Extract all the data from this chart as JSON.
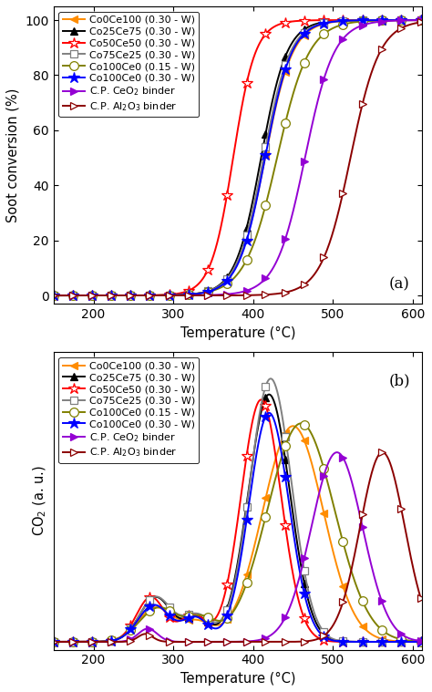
{
  "series_labels": [
    "Co0Ce100 (0.30 - W)",
    "Co25Ce75 (0.30 - W)",
    "Co50Ce50 (0.30 - W)",
    "Co75Ce25 (0.30 - W)",
    "Co100Ce0 (0.15 - W)",
    "Co100Ce0 (0.30 - W)",
    "C.P. CeO$_2$ binder",
    "C.P. Al$_2$O$_3$ binder"
  ],
  "colors": [
    "#FF8C00",
    "#000000",
    "#FF0000",
    "#808080",
    "#808000",
    "#0000FF",
    "#9400D3",
    "#8B0000"
  ],
  "markers": [
    "<",
    "^",
    "*",
    "s",
    "o",
    "*",
    ">",
    ">"
  ],
  "marker_filled": [
    true,
    true,
    false,
    false,
    false,
    true,
    true,
    false
  ],
  "marker_sizes": [
    6,
    6,
    9,
    6,
    7,
    9,
    6,
    6
  ],
  "temp_range": [
    150,
    610
  ],
  "panel_a_label": "(a)",
  "panel_b_label": "(b)",
  "xlabel": "Temperature (°C)",
  "ylabel_a": "Soot conversion (%)",
  "ylabel_b": "CO$_2$ (a. u.)",
  "xticks": [
    200,
    300,
    400,
    500,
    600
  ],
  "yticks_a": [
    0,
    20,
    40,
    60,
    80,
    100
  ],
  "ylim_a": [
    -3,
    105
  ],
  "ylim_b": [
    -0.03,
    1.1
  ],
  "sigmoid_params": [
    [
      415,
      0.058
    ],
    [
      410,
      0.062
    ],
    [
      375,
      0.072
    ],
    [
      413,
      0.06
    ],
    [
      430,
      0.05
    ],
    [
      415,
      0.06
    ],
    [
      465,
      0.055
    ],
    [
      522,
      0.055
    ]
  ],
  "co2_params": [
    [
      [
        278,
        22,
        0.13
      ],
      [
        330,
        18,
        0.07
      ],
      [
        450,
        38,
        0.82
      ]
    ],
    [
      [
        278,
        20,
        0.17
      ],
      [
        330,
        16,
        0.09
      ],
      [
        420,
        26,
        0.94
      ]
    ],
    [
      [
        272,
        18,
        0.17
      ],
      [
        325,
        16,
        0.1
      ],
      [
        410,
        25,
        0.92
      ]
    ],
    [
      [
        278,
        20,
        0.17
      ],
      [
        330,
        18,
        0.1
      ],
      [
        422,
        26,
        1.0
      ]
    ],
    [
      [
        282,
        24,
        0.13
      ],
      [
        335,
        18,
        0.08
      ],
      [
        460,
        42,
        0.83
      ]
    ],
    [
      [
        276,
        20,
        0.14
      ],
      [
        328,
        16,
        0.09
      ],
      [
        420,
        25,
        0.87
      ]
    ],
    [
      [
        268,
        12,
        0.03
      ],
      [
        268,
        12,
        0.02
      ],
      [
        505,
        32,
        0.72
      ]
    ],
    [
      [
        265,
        10,
        0.02
      ],
      [
        265,
        8,
        0.01
      ],
      [
        562,
        28,
        0.72
      ]
    ]
  ]
}
